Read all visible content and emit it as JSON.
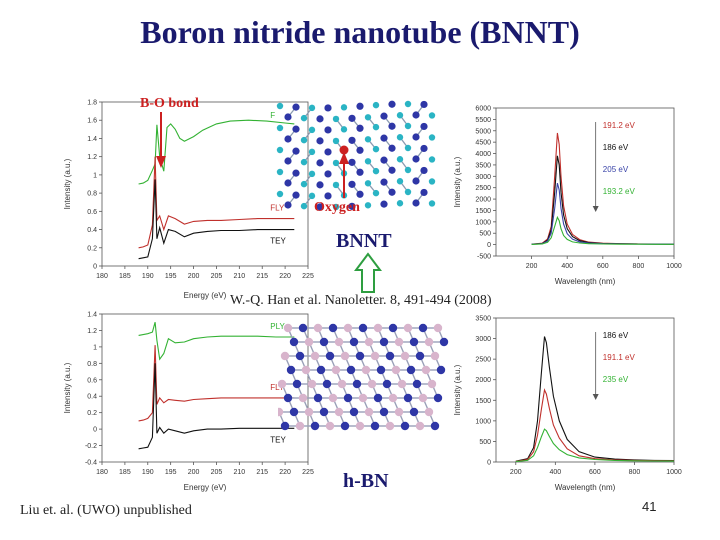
{
  "slide": {
    "title": "Boron nitride nanotube (BNNT)",
    "bo_label": "B-O bond",
    "oxygen_label": "Oxygen",
    "bnnt_label": "BNNT",
    "hbn_label": "h-BN",
    "citation": "W.-Q. Han et al. Nanoletter. 8, 491-494 (2008)",
    "credit": "Liu et. al. (UWO) unpublished",
    "slide_number": "41"
  },
  "colors": {
    "title": "#1a1a6e",
    "label_red": "#cc2020",
    "arrow_green": "#2e9e40",
    "series_green": "#33b233",
    "series_red": "#c0302c",
    "series_black": "#111111",
    "series_blue": "#3a44a8",
    "atom_boron_bnnt": "#2ab4c4",
    "atom_nitrogen": "#2e36a6",
    "atom_boron_hbn": "#d8b4cc"
  },
  "chart_data": [
    {
      "type": "line",
      "xlabel": "Energy (eV)",
      "ylabel": "Intensity (a.u.)",
      "xlim": [
        180,
        225
      ],
      "ylim": [
        0,
        1.8
      ],
      "xticks": [
        180,
        185,
        190,
        195,
        200,
        205,
        210,
        215,
        220,
        225
      ],
      "yticks": [
        0.0,
        0.2,
        0.4,
        0.6,
        0.8,
        1.0,
        1.2,
        1.4,
        1.6,
        1.8
      ],
      "series": [
        {
          "name": "F",
          "color": "#33b233",
          "x": [
            188,
            189,
            190,
            191,
            191.6,
            192,
            192.6,
            193.5,
            194.2,
            195,
            196,
            197,
            198,
            200,
            202,
            205,
            208,
            212,
            216,
            220,
            222
          ],
          "y": [
            0.9,
            0.91,
            0.94,
            1.05,
            1.12,
            1.55,
            1.2,
            1.04,
            1.52,
            1.56,
            1.5,
            1.4,
            1.37,
            1.42,
            1.49,
            1.56,
            1.59,
            1.6,
            1.59,
            1.57,
            1.56
          ]
        },
        {
          "name": "FLY",
          "color": "#c0302c",
          "x": [
            188,
            189,
            190,
            191,
            191.6,
            192,
            192.6,
            193.5,
            194.5,
            196,
            198,
            200,
            203,
            206,
            210,
            214,
            218,
            222
          ],
          "y": [
            0.2,
            0.21,
            0.23,
            0.45,
            1.2,
            0.5,
            0.55,
            0.4,
            0.55,
            0.52,
            0.46,
            0.49,
            0.5,
            0.5,
            0.51,
            0.52,
            0.52,
            0.52
          ]
        },
        {
          "name": "TEY",
          "color": "#111111",
          "x": [
            188,
            189,
            190,
            191,
            191.6,
            192,
            192.6,
            193.5,
            194.5,
            196,
            198,
            200,
            203,
            206,
            210,
            214,
            218,
            222
          ],
          "y": [
            0.08,
            0.09,
            0.1,
            0.3,
            0.95,
            0.3,
            0.42,
            0.25,
            0.4,
            0.38,
            0.32,
            0.36,
            0.38,
            0.39,
            0.39,
            0.4,
            0.4,
            0.4
          ]
        }
      ]
    },
    {
      "type": "line",
      "xlabel": "Wavelength (nm)",
      "ylabel": "Intensity (a.u.)",
      "xlim": [
        0,
        1000
      ],
      "ylim": [
        -500,
        6000
      ],
      "xticks": [
        200,
        400,
        600,
        800,
        1000
      ],
      "yticks": [
        -500,
        0,
        500,
        1000,
        1500,
        2000,
        2500,
        3000,
        3500,
        4000,
        4500,
        5000,
        5500,
        6000
      ],
      "legend_position": "top-right",
      "series": [
        {
          "name": "191.2 eV",
          "color": "#c0302c",
          "x": [
            200,
            260,
            290,
            310,
            330,
            345,
            355,
            365,
            380,
            400,
            430,
            470,
            520,
            600,
            700,
            800,
            900,
            1000
          ],
          "y": [
            20,
            60,
            250,
            800,
            3000,
            4900,
            4400,
            3000,
            1700,
            900,
            450,
            220,
            110,
            60,
            40,
            30,
            25,
            20
          ]
        },
        {
          "name": "186 eV",
          "color": "#111111",
          "x": [
            200,
            260,
            290,
            310,
            330,
            345,
            355,
            365,
            380,
            400,
            430,
            470,
            520,
            600,
            700,
            800,
            900,
            1000
          ],
          "y": [
            20,
            50,
            200,
            650,
            2300,
            3900,
            3500,
            2300,
            1300,
            700,
            350,
            170,
            90,
            50,
            35,
            28,
            24,
            20
          ]
        },
        {
          "name": "205 eV",
          "color": "#3a44a8",
          "x": [
            200,
            260,
            290,
            310,
            330,
            345,
            355,
            365,
            380,
            400,
            430,
            470,
            520,
            600,
            700,
            800,
            900,
            1000
          ],
          "y": [
            15,
            40,
            160,
            500,
            1600,
            2700,
            2400,
            1600,
            900,
            480,
            240,
            120,
            70,
            40,
            30,
            24,
            20,
            18
          ]
        },
        {
          "name": "193.2 eV",
          "color": "#33b233",
          "x": [
            200,
            260,
            290,
            310,
            330,
            345,
            355,
            365,
            380,
            400,
            430,
            470,
            520,
            600,
            700,
            800,
            900,
            1000
          ],
          "y": [
            10,
            30,
            100,
            300,
            800,
            1200,
            1050,
            700,
            400,
            230,
            120,
            70,
            40,
            25,
            20,
            18,
            16,
            15
          ]
        }
      ]
    },
    {
      "type": "line",
      "xlabel": "Energy (eV)",
      "ylabel": "Intensity (a.u.)",
      "xlim": [
        180,
        225
      ],
      "ylim": [
        -0.4,
        1.4
      ],
      "xticks": [
        180,
        185,
        190,
        195,
        200,
        205,
        210,
        215,
        220,
        225
      ],
      "yticks": [
        -0.4,
        -0.2,
        0.0,
        0.2,
        0.4,
        0.6,
        0.8,
        1.0,
        1.2,
        1.4
      ],
      "series": [
        {
          "name": "PLY",
          "color": "#33b233",
          "x": [
            188,
            189,
            190,
            191,
            191.6,
            192,
            192.6,
            193.5,
            194.5,
            196,
            198,
            200,
            203,
            206,
            210,
            214,
            218,
            222
          ],
          "y": [
            1.14,
            1.15,
            1.16,
            1.18,
            1.3,
            1.08,
            0.85,
            0.92,
            1.1,
            1.05,
            1.06,
            1.1,
            1.12,
            1.13,
            1.13,
            1.13,
            1.12,
            1.12
          ]
        },
        {
          "name": "FLY",
          "color": "#c0302c",
          "x": [
            188,
            189,
            190,
            191,
            191.6,
            192,
            192.6,
            193.5,
            194.5,
            196,
            198,
            200,
            203,
            206,
            210,
            214,
            218,
            222
          ],
          "y": [
            0.1,
            0.11,
            0.13,
            0.2,
            1.02,
            0.3,
            0.38,
            0.32,
            0.36,
            0.35,
            0.34,
            0.36,
            0.37,
            0.38,
            0.38,
            0.38,
            0.38,
            0.38
          ]
        },
        {
          "name": "TEY",
          "color": "#111111",
          "x": [
            188,
            189,
            190,
            191,
            191.6,
            192,
            192.6,
            193.5,
            194.5,
            196,
            198,
            200,
            203,
            206,
            210,
            214,
            218,
            222
          ],
          "y": [
            -0.24,
            -0.23,
            -0.22,
            -0.1,
            0.8,
            -0.05,
            0.02,
            -0.05,
            0.0,
            -0.02,
            -0.05,
            -0.02,
            0.0,
            0.0,
            0.01,
            0.01,
            0.01,
            0.01
          ]
        }
      ]
    },
    {
      "type": "line",
      "xlabel": "Wavelength (nm)",
      "ylabel": "Intensity (a.u.)",
      "xlim": [
        100,
        1000
      ],
      "ylim": [
        0,
        3500
      ],
      "xticks": [
        200,
        400,
        600,
        800,
        1000
      ],
      "yticks": [
        0,
        500,
        1000,
        1500,
        2000,
        2500,
        3000,
        3500
      ],
      "legend_position": "top-right",
      "series": [
        {
          "name": "186 eV",
          "color": "#111111",
          "x": [
            200,
            260,
            290,
            310,
            330,
            345,
            355,
            370,
            390,
            420,
            460,
            520,
            600,
            700,
            800,
            900,
            1000
          ],
          "y": [
            20,
            80,
            350,
            1000,
            2200,
            3050,
            2900,
            2300,
            1600,
            1000,
            550,
            250,
            120,
            70,
            50,
            40,
            35
          ]
        },
        {
          "name": "191.1 eV",
          "color": "#c0302c",
          "x": [
            200,
            260,
            290,
            310,
            330,
            345,
            355,
            370,
            390,
            420,
            460,
            520,
            600,
            700,
            800,
            900,
            1000
          ],
          "y": [
            15,
            60,
            250,
            650,
            1300,
            1750,
            1650,
            1300,
            900,
            580,
            320,
            150,
            80,
            50,
            40,
            32,
            28
          ]
        },
        {
          "name": "235 eV",
          "color": "#33b233",
          "x": [
            200,
            260,
            290,
            310,
            330,
            345,
            355,
            370,
            390,
            420,
            460,
            520,
            600,
            700,
            800,
            900,
            1000
          ],
          "y": [
            10,
            40,
            150,
            350,
            620,
            800,
            760,
            620,
            450,
            300,
            180,
            100,
            60,
            40,
            30,
            25,
            22
          ]
        }
      ]
    }
  ]
}
